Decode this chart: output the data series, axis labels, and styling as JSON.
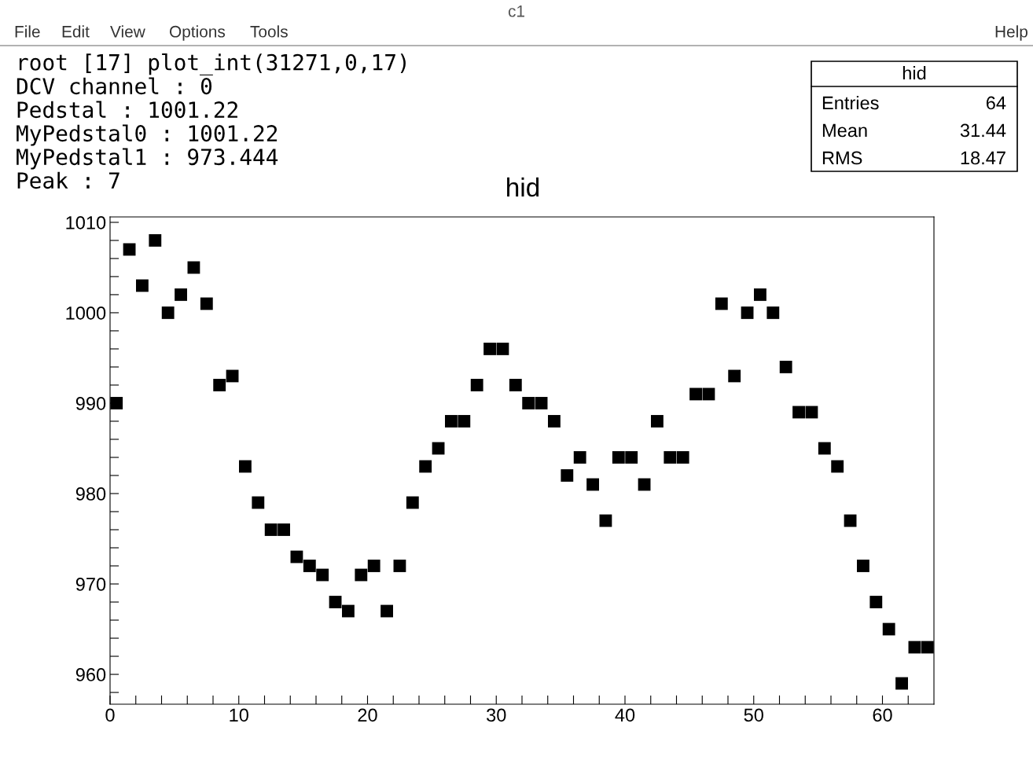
{
  "chart_data": {
    "type": "scatter",
    "title": "hid",
    "annotations": [
      "c1",
      "File",
      "Edit",
      "View",
      "Options",
      "Tools",
      "Help",
      "root [17] plot_int(31271,0,17)",
      "DCV channel : 0",
      "Pedstal : 1001.22",
      "MyPedstal0 : 1001.22",
      "MyPedstal1 : 973.444",
      "Peak : 7",
      "hid",
      "Entries",
      "64",
      "Mean",
      "31.44",
      "RMS",
      "18.47"
    ],
    "x": [
      0.5,
      1.5,
      2.5,
      3.5,
      4.5,
      5.5,
      6.5,
      7.5,
      8.5,
      9.5,
      10.5,
      11.5,
      12.5,
      13.5,
      14.5,
      15.5,
      16.5,
      17.5,
      18.5,
      19.5,
      20.5,
      21.5,
      22.5,
      23.5,
      24.5,
      25.5,
      26.5,
      27.5,
      28.5,
      29.5,
      30.5,
      31.5,
      32.5,
      33.5,
      34.5,
      35.5,
      36.5,
      37.5,
      38.5,
      39.5,
      40.5,
      41.5,
      42.5,
      43.5,
      44.5,
      45.5,
      46.5,
      47.5,
      48.5,
      49.5,
      50.5,
      51.5,
      52.5,
      53.5,
      54.5,
      55.5,
      56.5,
      57.5,
      58.5,
      59.5,
      60.5,
      61.5,
      62.5,
      63.5
    ],
    "series": [
      {
        "color": "#000000",
        "values": [
          990,
          1007,
          1003,
          1008,
          1000,
          1002,
          1005,
          1001,
          992,
          993,
          983,
          979,
          976,
          976,
          973,
          972,
          971,
          968,
          967,
          971,
          972,
          967,
          972,
          979,
          983,
          985,
          988,
          988,
          992,
          996,
          996,
          992,
          990,
          990,
          988,
          982,
          984,
          981,
          977,
          984,
          984,
          981,
          988,
          984,
          984,
          991,
          991,
          1001,
          993,
          1000,
          1002,
          1000,
          994,
          989,
          989,
          985,
          983,
          977,
          972,
          968,
          965,
          959,
          963,
          963
        ]
      }
    ],
    "marker": "square",
    "grid": false,
    "legend": false,
    "xlim": [
      0,
      64
    ],
    "ylim": [
      956.7,
      1010.6
    ],
    "xticks": [
      0,
      {
        "value": 2,
        "label": null
      },
      {
        "value": 4,
        "label": null
      },
      {
        "value": 6,
        "label": null
      },
      {
        "value": 8,
        "label": null
      },
      10,
      {
        "value": 12,
        "label": null
      },
      {
        "value": 14,
        "label": null
      },
      {
        "value": 16,
        "label": null
      },
      {
        "value": 18,
        "label": null
      },
      20,
      {
        "value": 22,
        "label": null
      },
      {
        "value": 24,
        "label": null
      },
      {
        "value": 26,
        "label": null
      },
      {
        "value": 28,
        "label": null
      },
      30,
      {
        "value": 32,
        "label": null
      },
      {
        "value": 34,
        "label": null
      },
      {
        "value": 36,
        "label": null
      },
      {
        "value": 38,
        "label": null
      },
      40,
      {
        "value": 42,
        "label": null
      },
      {
        "value": 44,
        "label": null
      },
      {
        "value": 46,
        "label": null
      },
      {
        "value": 48,
        "label": null
      },
      50,
      {
        "value": 52,
        "label": null
      },
      {
        "value": 54,
        "label": null
      },
      {
        "value": 56,
        "label": null
      },
      {
        "value": 58,
        "label": null
      },
      60,
      {
        "value": 62,
        "label": null
      }
    ],
    "yticks": [
      {
        "value": 958,
        "label": null
      },
      960,
      {
        "value": 962,
        "label": null
      },
      {
        "value": 964,
        "label": null
      },
      {
        "value": 966,
        "label": null
      },
      {
        "value": 968,
        "label": null
      },
      970,
      {
        "value": 972,
        "label": null
      },
      {
        "value": 974,
        "label": null
      },
      {
        "value": 976,
        "label": null
      },
      {
        "value": 978,
        "label": null
      },
      980,
      {
        "value": 982,
        "label": null
      },
      {
        "value": 984,
        "label": null
      },
      {
        "value": 986,
        "label": null
      },
      {
        "value": 988,
        "label": null
      },
      990,
      {
        "value": 992,
        "label": null
      },
      {
        "value": 994,
        "label": null
      },
      {
        "value": 996,
        "label": null
      },
      {
        "value": 998,
        "label": null
      },
      1000,
      {
        "value": 1002,
        "label": null
      },
      {
        "value": 1004,
        "label": null
      },
      {
        "value": 1006,
        "label": null
      },
      {
        "value": 1008,
        "label": null
      },
      1010
    ]
  }
}
